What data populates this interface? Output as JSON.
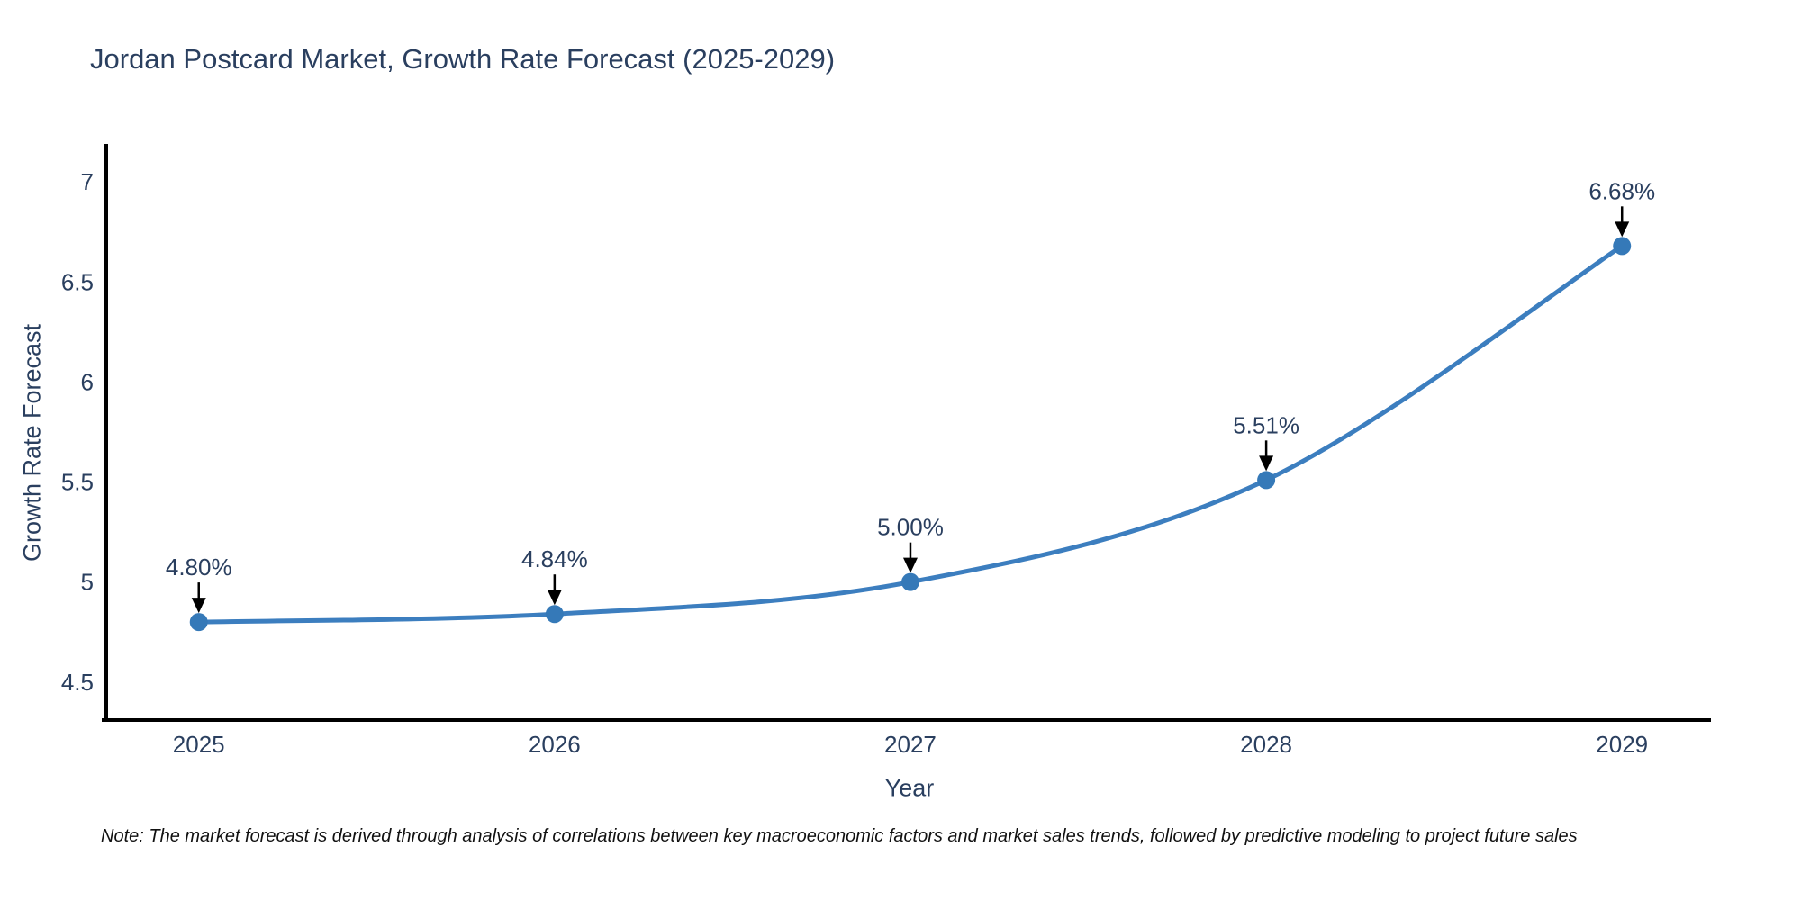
{
  "note": "Note: The market forecast is derived through analysis of correlations between key macroeconomic factors and market sales trends, followed by predictive modeling to project future sales",
  "chart_data": {
    "type": "line",
    "title": "Jordan Postcard Market, Growth Rate Forecast (2025-2029)",
    "xlabel": "Year",
    "ylabel": "Growth Rate Forecast",
    "x": [
      2025,
      2026,
      2027,
      2028,
      2029
    ],
    "values": [
      4.8,
      4.84,
      5.0,
      5.51,
      6.68
    ],
    "point_labels": [
      "4.80%",
      "4.84%",
      "5.00%",
      "5.51%",
      "6.68%"
    ],
    "yticks": [
      4.5,
      5,
      5.5,
      6,
      6.5,
      7
    ],
    "xlim": [
      2024.74,
      2029.25
    ],
    "ylim": [
      4.31,
      7.19
    ],
    "grid": false,
    "legend": "none",
    "line_color": "#3c7ebf",
    "marker_color": "#3579b8",
    "axis_color": "#000000",
    "tick_color": "#2a3f5f",
    "annotation_text_color": "#2a3f5f",
    "arrow_color": "#000000"
  }
}
